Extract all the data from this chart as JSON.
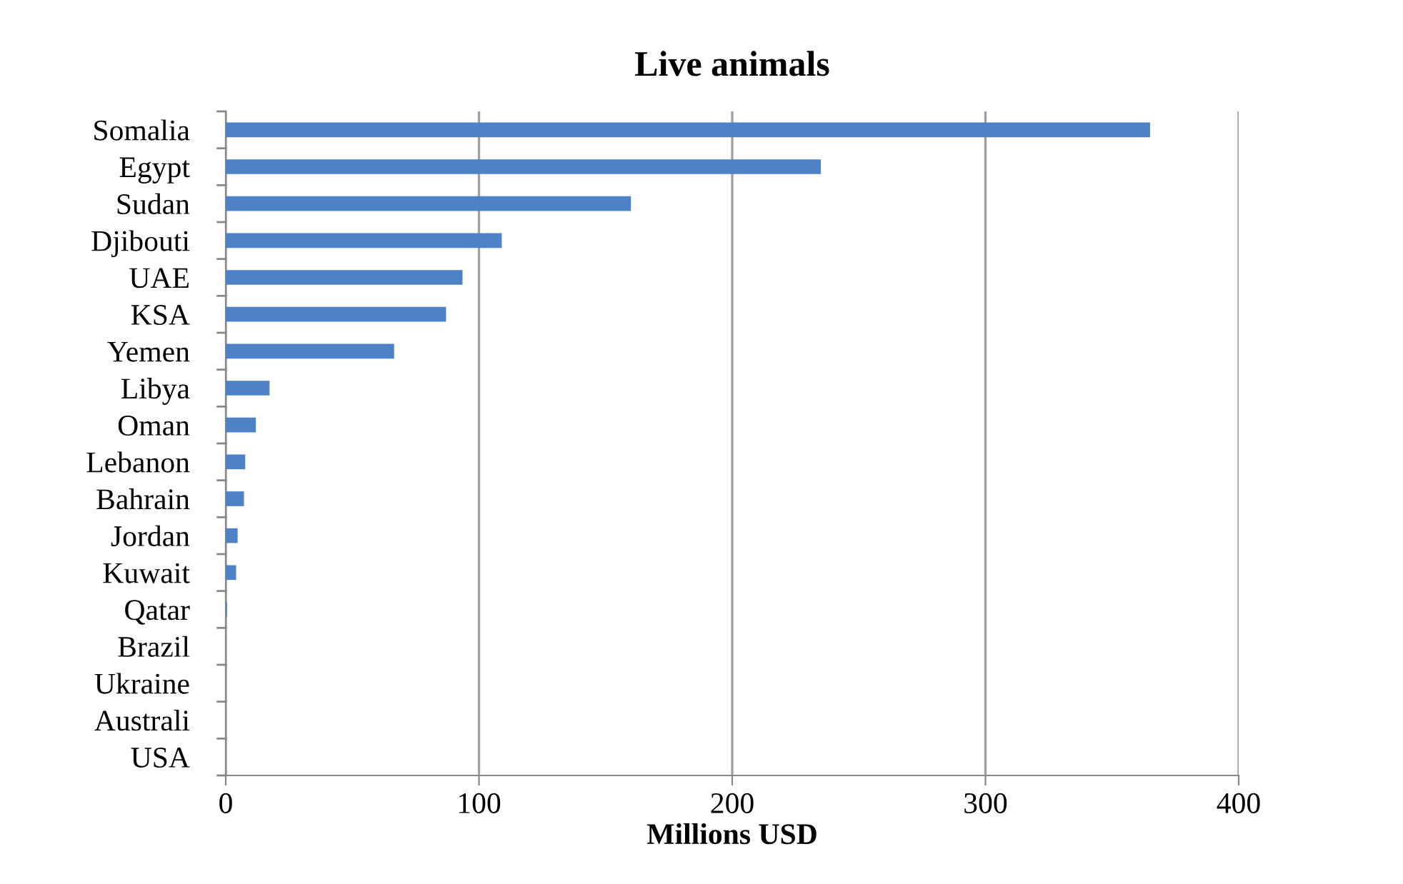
{
  "chart_data": {
    "type": "bar",
    "orientation": "horizontal",
    "title": "Live animals",
    "xlabel": "Millions USD",
    "categories": [
      "Somalia",
      "Egypt",
      "Sudan",
      "Djibouti",
      "UAE",
      "KSA",
      "Yemen",
      "Libya",
      "Oman",
      "Lebanon",
      "Bahrain",
      "Jordan",
      "Kuwait",
      "Qatar",
      "Brazil",
      "Ukraine",
      "Australi",
      "USA"
    ],
    "values": [
      365,
      235,
      160,
      109,
      93.5,
      87,
      66.5,
      17.3,
      11.9,
      7.7,
      7.2,
      4.7,
      4.1,
      0.5,
      0,
      0,
      0,
      0
    ],
    "color": "#4f81c7",
    "xlim": [
      0,
      400
    ],
    "xticks": [
      0,
      100,
      200,
      300,
      400
    ],
    "grid": "x"
  }
}
